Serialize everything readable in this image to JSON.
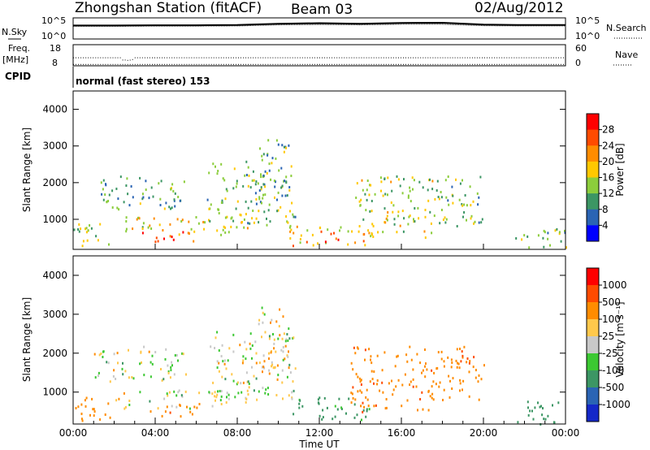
{
  "header": {
    "station": "Zhongshan Station (fitACF)",
    "beam": "Beam 03",
    "date": "02/Aug/2012"
  },
  "noise_panel": {
    "left_label": "N.Sky",
    "right_label": "N.Search",
    "top_tick": "10^5",
    "bottom_tick": "10^0"
  },
  "freq_panel": {
    "left_label_line1": "Freq.",
    "left_label_line2": "[MHz]",
    "left_top_tick": "18",
    "left_bottom_tick": "8",
    "right_label": "Nave",
    "right_top_tick": "60",
    "right_bottom_tick": "0"
  },
  "cpid_panel": {
    "label": "CPID",
    "text": "normal (fast stereo) 153"
  },
  "x_axis": {
    "label": "Time UT",
    "ticks": [
      "00:00",
      "04:00",
      "08:00",
      "12:00",
      "16:00",
      "20:00",
      "00:00"
    ]
  },
  "power_panel": {
    "ylabel": "Slant Range [km]",
    "yticks": [
      "4000",
      "3000",
      "2000",
      "1000"
    ],
    "colorbar_label": "Power [dB]",
    "colorbar_ticks": [
      "28",
      "24",
      "20",
      "16",
      "12",
      "8",
      "4"
    ],
    "colorbar_colors": [
      "#ff0000",
      "#ff4b00",
      "#ff8c00",
      "#ffc800",
      "#8ccd3c",
      "#3c9664",
      "#2a64b4",
      "#0000ff"
    ]
  },
  "velocity_panel": {
    "ylabel": "Slant Range [km]",
    "yticks": [
      "4000",
      "3000",
      "2000",
      "1000"
    ],
    "colorbar_label": "Velocity [m s⁻¹]",
    "colorbar_ticks": [
      "1000",
      "500",
      "100",
      "25",
      "-25",
      "-100",
      "-500",
      "-1000"
    ],
    "colorbar_colors": [
      "#ff0000",
      "#ff4b00",
      "#ff8c00",
      "#ffc84b",
      "#c8c8c8",
      "#3cc832",
      "#3c9664",
      "#2a64b4",
      "#1428c8"
    ]
  },
  "chart_data": [
    {
      "type": "line",
      "title": "Zhongshan Station (fitACF)",
      "subtitle": "Beam 03",
      "xlabel": "Time UT",
      "ylabel": "N.Sky",
      "x": [
        "00:00",
        "02:00",
        "04:00",
        "06:00",
        "08:00",
        "10:00",
        "12:00",
        "14:00",
        "16:00",
        "18:00",
        "20:00",
        "22:00",
        "24:00"
      ],
      "series": [
        {
          "name": "N.Sky",
          "values": [
            3.2,
            3.2,
            3.25,
            3.25,
            3.3,
            3.6,
            3.75,
            3.6,
            3.8,
            3.85,
            3.4,
            3.3,
            3.3
          ]
        },
        {
          "name": "N.Search",
          "values": [
            3.0,
            3.0,
            3.05,
            3.05,
            3.1,
            3.35,
            3.45,
            3.35,
            3.5,
            3.5,
            3.15,
            3.1,
            3.1
          ]
        }
      ],
      "ylim": [
        0,
        5
      ],
      "yscale": "log",
      "xlim": [
        "00:00",
        "24:00"
      ]
    },
    {
      "type": "scatter",
      "xlabel": "Time UT",
      "ylabel": "Freq. [MHz]",
      "series": [
        {
          "name": "Freq.",
          "x": [
            "00:00",
            "02:00",
            "02:30",
            "04:00",
            "08:00",
            "12:00",
            "16:00",
            "20:00",
            "24:00"
          ],
          "values": [
            12,
            12,
            10.5,
            12,
            12,
            12,
            12,
            12,
            12
          ]
        },
        {
          "name": "Nave",
          "x": [
            "00:00",
            "06:00",
            "12:00",
            "18:00",
            "24:00"
          ],
          "values": [
            5,
            5,
            5,
            5,
            5
          ]
        }
      ],
      "ylim": [
        8,
        18
      ],
      "y2lim": [
        0,
        60
      ]
    },
    {
      "type": "heatmap",
      "title": "Power",
      "xlabel": "Time UT",
      "ylabel": "Slant Range [km]",
      "xlim": [
        "00:00",
        "24:00"
      ],
      "ylim": [
        180,
        4500
      ],
      "colorbar": {
        "label": "Power [dB]",
        "ticks": [
          4,
          8,
          12,
          16,
          20,
          24,
          28
        ],
        "range": [
          0,
          30
        ]
      },
      "echo_regions": [
        {
          "t_start": 0.0,
          "t_end": 2.0,
          "r_low": 250,
          "r_high": 900,
          "value": 12
        },
        {
          "t_start": 1.0,
          "t_end": 5.5,
          "r_low": 1300,
          "r_high": 2200,
          "value": 10
        },
        {
          "t_start": 2.0,
          "t_end": 8.5,
          "r_low": 600,
          "r_high": 1100,
          "value": 16
        },
        {
          "t_start": 3.2,
          "t_end": 6.0,
          "r_low": 400,
          "r_high": 700,
          "value": 26
        },
        {
          "t_start": 6.5,
          "t_end": 10.8,
          "r_low": 800,
          "r_high": 2600,
          "value": 12
        },
        {
          "t_start": 9.0,
          "t_end": 10.5,
          "r_low": 1500,
          "r_high": 3200,
          "value": 10
        },
        {
          "t_start": 10.5,
          "t_end": 14.5,
          "r_low": 300,
          "r_high": 900,
          "value": 18
        },
        {
          "t_start": 12.0,
          "t_end": 13.0,
          "r_low": 400,
          "r_high": 700,
          "value": 26
        },
        {
          "t_start": 13.5,
          "t_end": 17.5,
          "r_low": 500,
          "r_high": 2200,
          "value": 14
        },
        {
          "t_start": 17.5,
          "t_end": 20.0,
          "r_low": 800,
          "r_high": 2200,
          "value": 12
        },
        {
          "t_start": 21.5,
          "t_end": 24.0,
          "r_low": 200,
          "r_high": 800,
          "value": 10
        }
      ]
    },
    {
      "type": "heatmap",
      "title": "Velocity",
      "xlabel": "Time UT",
      "ylabel": "Slant Range [km]",
      "xlim": [
        "00:00",
        "24:00"
      ],
      "ylim": [
        180,
        4500
      ],
      "colorbar": {
        "label": "Velocity [m s⁻¹]",
        "ticks": [
          -1000,
          -500,
          -100,
          -25,
          25,
          100,
          500,
          1000
        ],
        "range": [
          -1200,
          1200
        ]
      },
      "echo_regions": [
        {
          "t_start": 0.0,
          "t_end": 2.0,
          "r_low": 250,
          "r_high": 900,
          "value": -300
        },
        {
          "t_start": 1.0,
          "t_end": 5.5,
          "r_low": 1300,
          "r_high": 2200,
          "value": 0
        },
        {
          "t_start": 2.0,
          "t_end": 8.5,
          "r_low": 600,
          "r_high": 1100,
          "value": 0
        },
        {
          "t_start": 3.2,
          "t_end": 6.0,
          "r_low": 400,
          "r_high": 700,
          "value": -400
        },
        {
          "t_start": 6.5,
          "t_end": 10.8,
          "r_low": 800,
          "r_high": 2600,
          "value": 0
        },
        {
          "t_start": 9.0,
          "t_end": 10.5,
          "r_low": 1500,
          "r_high": 3200,
          "value": -60
        },
        {
          "t_start": 10.5,
          "t_end": 14.5,
          "r_low": 300,
          "r_high": 900,
          "value": 200
        },
        {
          "t_start": 13.5,
          "t_end": 17.5,
          "r_low": 500,
          "r_high": 2200,
          "value": -400
        },
        {
          "t_start": 17.5,
          "t_end": 20.0,
          "r_low": 800,
          "r_high": 2200,
          "value": -300
        },
        {
          "t_start": 18.8,
          "t_end": 19.8,
          "r_low": 1700,
          "r_high": 2100,
          "value": -900
        },
        {
          "t_start": 21.5,
          "t_end": 24.0,
          "r_low": 200,
          "r_high": 800,
          "value": 300
        }
      ]
    }
  ]
}
